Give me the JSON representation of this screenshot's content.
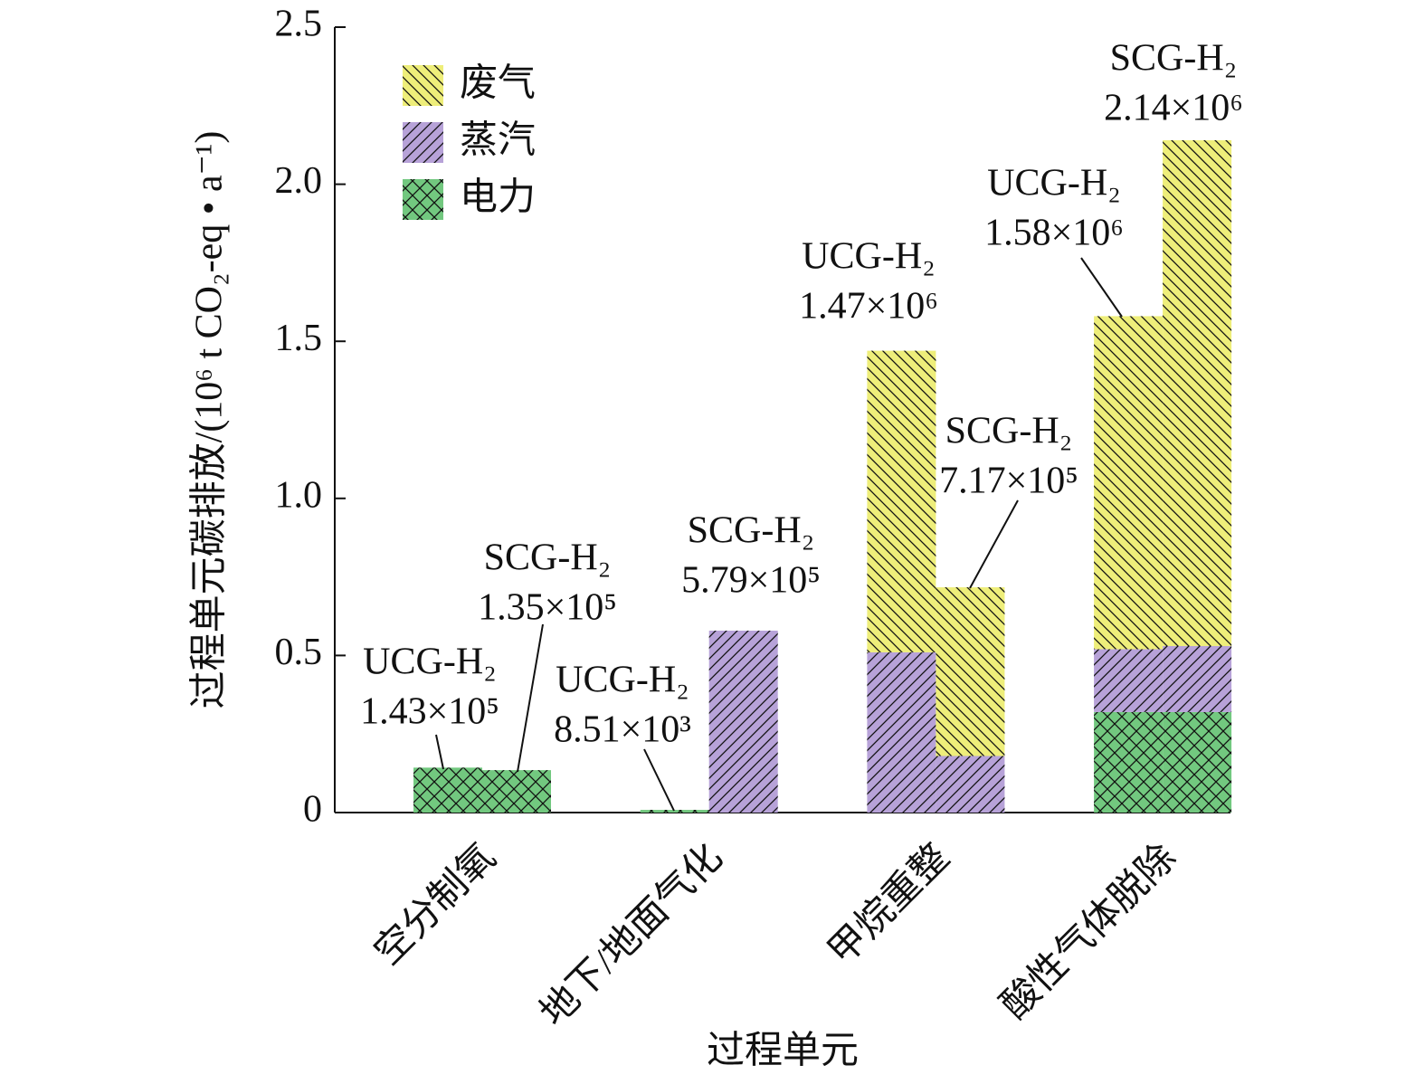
{
  "chart_data": {
    "type": "grouped-stacked-bar",
    "y_label": "过程单元碳排放/(10⁶ t CO₂-eq • a⁻¹)",
    "x_label": "过程单元",
    "categories": [
      "空分制氧",
      "地下/地面气化",
      "甲烷重整",
      "酸性气体脱除"
    ],
    "series": [
      {
        "name": "废气",
        "color": "#eeee7a",
        "hatch": "back",
        "values": [
          [
            0,
            0
          ],
          [
            0,
            0
          ],
          [
            0.96,
            0.537
          ],
          [
            1.06,
            1.61
          ]
        ]
      },
      {
        "name": "蒸汽",
        "color": "#b7a2d8",
        "hatch": "forward",
        "values": [
          [
            0,
            0
          ],
          [
            0,
            0.579
          ],
          [
            0.51,
            0.18
          ],
          [
            0.2,
            0.21
          ]
        ]
      },
      {
        "name": "电力",
        "color": "#72c87f",
        "hatch": "cross",
        "values": [
          [
            0.143,
            0.135
          ],
          [
            0.00851,
            0
          ],
          [
            0,
            0
          ],
          [
            0.32,
            0.32
          ]
        ]
      }
    ],
    "annotations": [
      [
        {
          "group": "UCG-H₂",
          "text": "1.43×10⁵"
        },
        {
          "group": "SCG-H₂",
          "text": "1.35×10⁵"
        }
      ],
      [
        {
          "group": "UCG-H₂",
          "text": "8.51×10³"
        },
        {
          "group": "SCG-H₂",
          "text": "5.79×10⁵"
        }
      ],
      [
        {
          "group": "UCG-H₂",
          "text": "1.47×10⁶"
        },
        {
          "group": "SCG-H₂",
          "text": "7.17×10⁵"
        }
      ],
      [
        {
          "group": "UCG-H₂",
          "text": "1.58×10⁶"
        },
        {
          "group": "SCG-H₂",
          "text": "2.14×10⁶"
        }
      ]
    ],
    "ylim": [
      0,
      2.5
    ],
    "yticks": [
      0,
      0.5,
      {
        "value": 1,
        "label": "1.0"
      },
      1.5,
      {
        "value": 2,
        "label": "2.0"
      },
      2.5
    ],
    "legend": "upper-left"
  }
}
